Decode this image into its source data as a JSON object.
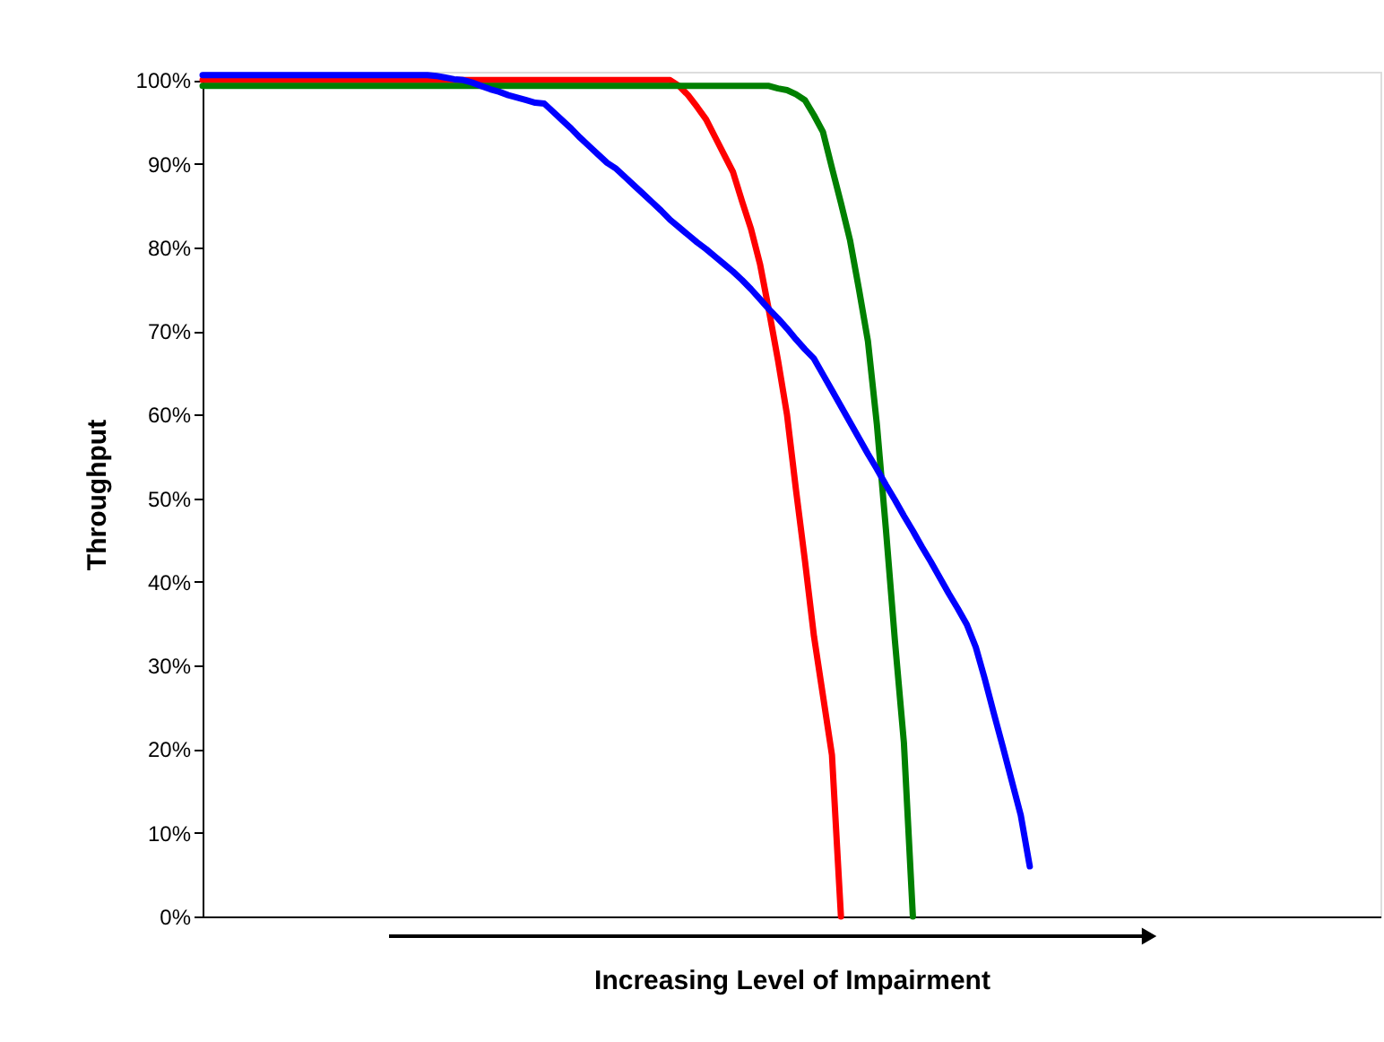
{
  "chart_data": {
    "type": "line",
    "xlabel": "Increasing Level of Impairment",
    "ylabel": "Throughput",
    "categories": [
      null,
      null,
      null,
      null,
      null,
      null,
      null,
      null,
      null,
      null,
      null,
      null,
      null,
      null,
      null,
      null,
      null,
      null,
      null,
      null,
      null,
      null,
      null,
      null,
      null,
      null,
      null,
      null,
      null,
      null,
      null,
      null,
      null,
      null,
      null,
      null,
      null,
      null,
      null,
      null,
      null,
      null,
      null,
      null,
      null,
      null,
      null,
      null,
      null,
      null,
      null,
      null,
      null,
      null,
      null,
      null,
      null,
      null,
      null,
      null,
      null,
      null,
      null,
      null,
      null,
      null,
      null,
      null,
      null,
      null,
      null,
      null,
      null,
      null,
      null,
      null,
      null,
      null,
      null,
      null,
      null,
      null,
      null,
      null,
      null,
      null,
      null,
      null,
      null,
      null,
      null,
      null,
      null,
      null,
      null,
      null,
      null,
      null,
      null,
      null,
      null,
      null,
      null,
      null,
      null,
      null,
      null,
      null,
      null,
      null,
      null,
      null,
      null,
      null,
      null,
      null,
      null,
      null,
      null,
      null,
      null,
      null,
      null,
      null,
      null,
      null,
      null,
      null,
      null,
      null,
      null,
      null
    ],
    "series": [
      {
        "color": "#ff0000",
        "values": [
          100,
          100,
          100,
          100,
          100,
          100,
          100,
          100,
          100,
          100,
          100,
          100,
          100,
          100,
          100,
          100,
          100,
          100,
          100,
          100,
          100,
          100,
          100,
          100,
          100,
          100,
          100,
          100,
          100,
          100,
          100,
          100,
          100,
          100,
          100,
          100,
          100,
          100,
          100,
          100,
          100,
          100,
          100,
          100,
          100,
          100,
          100,
          100,
          100,
          100,
          100,
          100,
          100,
          99.3,
          98.2,
          96.8,
          95.3,
          93.2,
          91.1,
          89,
          85.5,
          82.2,
          78,
          72.4,
          66.5,
          60,
          51,
          42.5,
          33.5,
          26.4,
          19.3,
          0,
          null,
          null,
          null,
          null,
          null,
          null,
          null,
          null,
          null,
          null,
          null,
          null,
          null,
          null,
          null,
          null,
          null,
          null,
          null,
          null,
          null,
          null,
          null,
          null,
          null,
          null,
          null,
          null,
          null,
          null,
          null,
          null,
          null,
          null,
          null,
          null,
          null,
          null,
          null,
          null,
          null,
          null,
          null,
          null,
          null,
          null,
          null,
          null,
          null,
          null,
          null,
          null,
          null,
          null,
          null,
          null,
          null,
          null,
          null,
          null
        ]
      },
      {
        "color": "#008000",
        "values": [
          99.3,
          99.3,
          99.3,
          99.3,
          99.3,
          99.3,
          99.3,
          99.3,
          99.3,
          99.3,
          99.3,
          99.3,
          99.3,
          99.3,
          99.3,
          99.3,
          99.3,
          99.3,
          99.3,
          99.3,
          99.3,
          99.3,
          99.3,
          99.3,
          99.3,
          99.3,
          99.3,
          99.3,
          99.3,
          99.3,
          99.3,
          99.3,
          99.3,
          99.3,
          99.3,
          99.3,
          99.3,
          99.3,
          99.3,
          99.3,
          99.3,
          99.3,
          99.3,
          99.3,
          99.3,
          99.3,
          99.3,
          99.3,
          99.3,
          99.3,
          99.3,
          99.3,
          99.3,
          99.3,
          99.3,
          99.3,
          99.3,
          99.3,
          99.3,
          99.3,
          99.3,
          99.3,
          99.3,
          99.3,
          99,
          98.8,
          98.3,
          97.6,
          95.8,
          93.8,
          89.5,
          85.3,
          80.9,
          75,
          68.8,
          58.8,
          46.3,
          33,
          20.8,
          0,
          null,
          null,
          null,
          null,
          null,
          null,
          null,
          null,
          null,
          null,
          null,
          null,
          null,
          null,
          null,
          null,
          null,
          null,
          null,
          null,
          null,
          null,
          null,
          null,
          null,
          null,
          null,
          null,
          null,
          null,
          null,
          null,
          null,
          null,
          null,
          null,
          null,
          null,
          null,
          null,
          null,
          null,
          null,
          null,
          null,
          null,
          null,
          null,
          null,
          null,
          null,
          null
        ]
      },
      {
        "color": "#0000ff",
        "values": [
          100.6,
          100.6,
          100.6,
          100.6,
          100.6,
          100.6,
          100.6,
          100.6,
          100.6,
          100.6,
          100.6,
          100.6,
          100.6,
          100.6,
          100.6,
          100.6,
          100.6,
          100.6,
          100.6,
          100.6,
          100.6,
          100.6,
          100.6,
          100.6,
          100.6,
          100.6,
          100.5,
          100.3,
          100.1,
          100,
          99.7,
          99.3,
          98.9,
          98.6,
          98.2,
          97.9,
          97.6,
          97.3,
          97.2,
          96.2,
          95.2,
          94.2,
          93.1,
          92.1,
          91.1,
          90.1,
          89.4,
          88.4,
          87.4,
          86.4,
          85.4,
          84.4,
          83.3,
          82.4,
          81.5,
          80.6,
          79.8,
          78.9,
          78,
          77.1,
          76.1,
          75,
          73.8,
          72.6,
          71.5,
          70.3,
          69,
          67.8,
          66.7,
          64.8,
          62.9,
          61,
          59.1,
          57.2,
          55.3,
          53.5,
          51.6,
          49.8,
          47.9,
          46.1,
          44.2,
          42.4,
          40.5,
          38.6,
          36.8,
          34.9,
          32.2,
          28.4,
          24.3,
          20.3,
          16.2,
          12.1,
          6,
          null,
          null,
          null,
          null,
          null,
          null,
          null,
          null,
          null,
          null,
          null,
          null,
          null,
          null,
          null,
          null,
          null,
          null,
          null,
          null,
          null,
          null,
          null,
          null,
          null,
          null,
          null,
          null,
          null,
          null,
          null,
          null,
          null,
          null,
          null,
          null,
          null,
          null,
          null
        ]
      }
    ],
    "ylim": [
      0,
      101
    ],
    "yticks": [
      {
        "value": 0,
        "label": "0%"
      },
      {
        "value": 10,
        "label": "10%"
      },
      {
        "value": 20,
        "label": "20%"
      },
      {
        "value": 30,
        "label": "30%"
      },
      {
        "value": 40,
        "label": "40%"
      },
      {
        "value": 50,
        "label": "50%"
      },
      {
        "value": 60,
        "label": "60%"
      },
      {
        "value": 70,
        "label": "70%"
      },
      {
        "value": 80,
        "label": "80%"
      },
      {
        "value": 90,
        "label": "90%"
      },
      {
        "value": 100,
        "label": "100%"
      }
    ],
    "grid": false,
    "legend": false,
    "marker": "none",
    "line_style": "solid"
  }
}
